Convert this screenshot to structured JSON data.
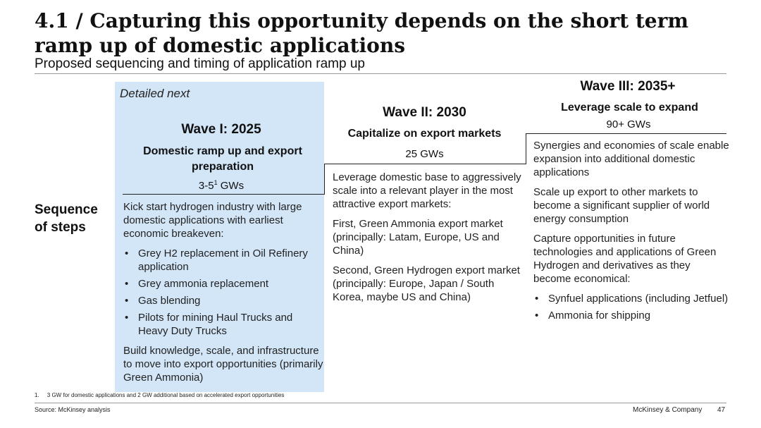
{
  "header": {
    "title": "4.1 / Capturing this opportunity depends on the short term ramp up of domestic applications",
    "subtitle": "Proposed sequencing and timing of application ramp up"
  },
  "sequence_label_line1": "Sequence",
  "sequence_label_line2": "of steps",
  "wave1": {
    "tag": "Detailed next",
    "title": "Wave I: 2025",
    "subtitle": "Domestic ramp up and export preparation",
    "gw_main": "3-5",
    "gw_sup": "1",
    "gw_unit": " GWs",
    "intro": "Kick start hydrogen industry with large domestic applications with earliest economic breakeven:",
    "bullets": [
      "Grey H2 replacement in Oil Refinery application",
      "Grey ammonia replacement",
      "Gas blending",
      "Pilots for mining Haul Trucks and Heavy Duty Trucks"
    ],
    "outro": "Build knowledge, scale, and infrastructure to move into export opportunities (primarily Green Ammonia)"
  },
  "wave2": {
    "title": "Wave II: 2030",
    "subtitle": "Capitalize on export markets",
    "gw": "25 GWs",
    "paragraphs": [
      "Leverage domestic base to aggressively scale into a relevant player in the most attractive export markets:",
      "First, Green Ammonia export market (principally: Latam, Europe, US and China)",
      "Second, Green Hydrogen export market (principally: Europe, Japan / South Korea, maybe US and China)"
    ]
  },
  "wave3": {
    "title": "Wave III: 2035+",
    "subtitle": "Leverage scale to expand",
    "gw": "90+ GWs",
    "paragraphs": [
      "Synergies and economies of scale enable expansion into additional domestic applications",
      "Scale up export to other markets to become a significant supplier of world energy consumption",
      "Capture opportunities in future technologies and applications of Green Hydrogen and derivatives as they become economical:"
    ],
    "bullets": [
      "Synfuel applications (including Jetfuel)",
      "Ammonia for shipping"
    ]
  },
  "footer": {
    "footnote": "1.     3 GW for domestic applications and 2 GW additional based on accelerated export opportunities",
    "source": "Source: McKinsey analysis",
    "company": "McKinsey & Company",
    "page": "47"
  }
}
